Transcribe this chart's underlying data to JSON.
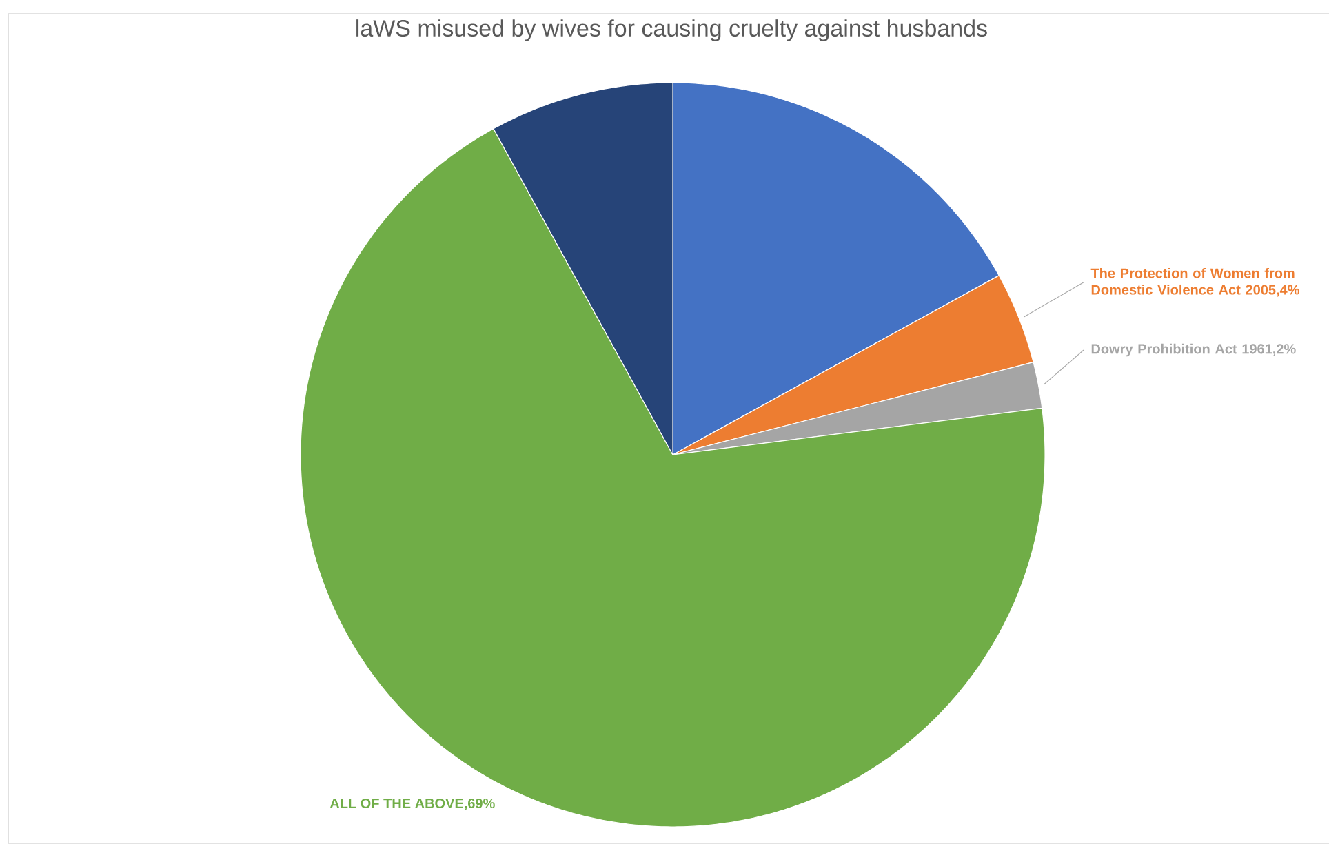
{
  "chart_data": {
    "type": "pie",
    "title": "laWS misused by wives for causing cruelty against husbands",
    "categories": [
      null,
      "The Protection of Women from Domestic Violence Act 2005,4%",
      "Dowry Prohibition Act 1961,2%",
      "ALL OF THE ABOVE,69%",
      null
    ],
    "values": [
      17,
      4,
      2,
      69,
      8
    ],
    "colors": [
      "#4472c4",
      "#ed7d31",
      "#a5a5a5",
      "#70ad47",
      "#264478"
    ]
  }
}
